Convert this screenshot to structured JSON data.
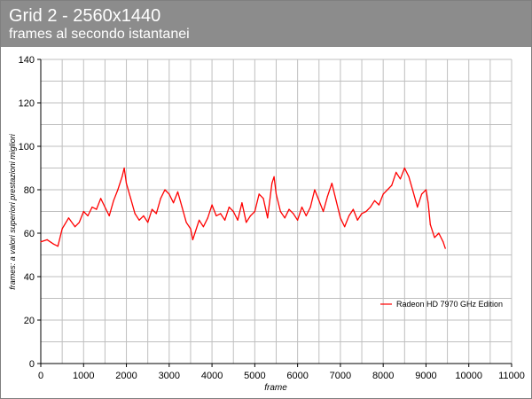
{
  "header": {
    "title": "Grid 2 - 2560x1440",
    "subtitle": "frames al secondo istantanei"
  },
  "colors": {
    "header_bg": "#8c8c8c",
    "series_line": "#ff0000",
    "grid": "#bfbfbf"
  },
  "chart_data": {
    "type": "line",
    "title": "Grid 2 - 2560x1440",
    "subtitle": "frames al secondo istantanei",
    "xlabel": "frame",
    "ylabel": "frames: a valori superiori prestazioni migliori",
    "xlim": [
      0,
      11000
    ],
    "ylim": [
      0,
      140
    ],
    "x_ticks": [
      0,
      1000,
      2000,
      3000,
      4000,
      5000,
      6000,
      7000,
      8000,
      9000,
      10000,
      11000
    ],
    "y_ticks": [
      0,
      20,
      40,
      60,
      80,
      100,
      120,
      140
    ],
    "grid": true,
    "legend_position": "right",
    "series": [
      {
        "name": "Radeon HD 7970 GHz Edition",
        "color": "#ff0000",
        "x": [
          0,
          150,
          300,
          400,
          500,
          650,
          800,
          900,
          1000,
          1100,
          1200,
          1300,
          1400,
          1500,
          1600,
          1700,
          1800,
          1900,
          1950,
          2000,
          2100,
          2200,
          2300,
          2400,
          2500,
          2600,
          2700,
          2800,
          2900,
          3000,
          3100,
          3200,
          3300,
          3400,
          3500,
          3550,
          3600,
          3700,
          3800,
          3900,
          4000,
          4100,
          4200,
          4300,
          4400,
          4500,
          4600,
          4700,
          4800,
          4900,
          5000,
          5100,
          5200,
          5300,
          5400,
          5450,
          5500,
          5600,
          5700,
          5800,
          5900,
          6000,
          6100,
          6200,
          6300,
          6400,
          6500,
          6600,
          6700,
          6800,
          6900,
          7000,
          7100,
          7200,
          7300,
          7400,
          7500,
          7600,
          7700,
          7800,
          7900,
          8000,
          8100,
          8200,
          8300,
          8400,
          8500,
          8600,
          8700,
          8800,
          8900,
          9000,
          9050,
          9100,
          9200,
          9300,
          9400,
          9450
        ],
        "values": [
          56,
          57,
          55,
          54,
          62,
          67,
          63,
          65,
          70,
          68,
          72,
          71,
          76,
          72,
          68,
          75,
          80,
          86,
          90,
          83,
          76,
          69,
          66,
          68,
          65,
          71,
          69,
          76,
          80,
          78,
          74,
          79,
          72,
          65,
          62,
          57,
          60,
          66,
          63,
          67,
          73,
          68,
          69,
          66,
          72,
          70,
          66,
          74,
          65,
          68,
          70,
          78,
          76,
          67,
          83,
          86,
          78,
          70,
          67,
          71,
          69,
          66,
          72,
          68,
          72,
          80,
          75,
          70,
          77,
          83,
          75,
          67,
          63,
          68,
          71,
          66,
          69,
          70,
          72,
          75,
          73,
          78,
          80,
          82,
          88,
          85,
          90,
          86,
          79,
          72,
          78,
          80,
          74,
          64,
          58,
          60,
          56,
          53
        ]
      }
    ]
  }
}
